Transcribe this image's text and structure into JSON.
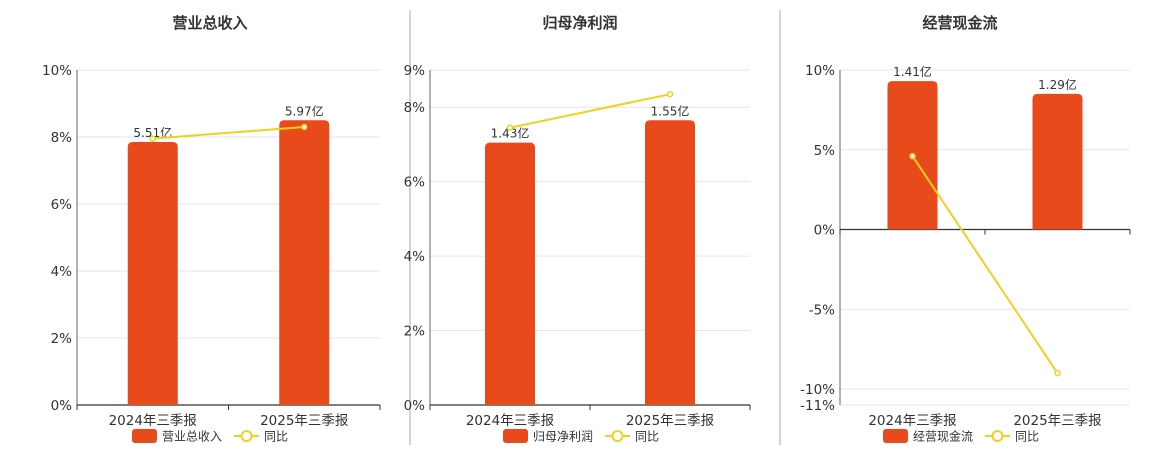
{
  "colors": {
    "bar": "#e84a1b",
    "line": "#f2d01e",
    "grid": "#e6e6e6",
    "axis": "#333333",
    "separator": "#aaaaaa"
  },
  "chart_data": [
    {
      "type": "bar",
      "title": "营业总收入",
      "categories": [
        "2024年三季报",
        "2025年三季报"
      ],
      "series": [
        {
          "name": "营业总收入",
          "kind": "bar",
          "values": [
            7.85,
            8.5
          ],
          "labels": [
            "5.51亿",
            "5.97亿"
          ]
        },
        {
          "name": "同比",
          "kind": "line",
          "values": [
            7.95,
            8.3
          ]
        }
      ],
      "ylim": [
        0,
        10
      ],
      "yticks": [
        0,
        2,
        4,
        6,
        8,
        10
      ],
      "ytick_labels": [
        "0%",
        "2%",
        "4%",
        "6%",
        "8%",
        "10%"
      ],
      "grid": true,
      "legend": "bottom-center"
    },
    {
      "type": "bar",
      "title": "归母净利润",
      "categories": [
        "2024年三季报",
        "2025年三季报"
      ],
      "series": [
        {
          "name": "归母净利润",
          "kind": "bar",
          "values": [
            7.05,
            7.65
          ],
          "labels": [
            "1.43亿",
            "1.55亿"
          ]
        },
        {
          "name": "同比",
          "kind": "line",
          "values": [
            7.45,
            8.35
          ]
        }
      ],
      "ylim": [
        0,
        9
      ],
      "yticks": [
        0,
        2,
        4,
        6,
        8,
        9
      ],
      "ytick_labels": [
        "0%",
        "2%",
        "4%",
        "6%",
        "8%",
        "9%"
      ],
      "grid": true,
      "legend": "bottom-center"
    },
    {
      "type": "bar",
      "title": "经营现金流",
      "categories": [
        "2024年三季报",
        "2025年三季报"
      ],
      "series": [
        {
          "name": "经营现金流",
          "kind": "bar",
          "values": [
            9.3,
            8.5
          ],
          "labels": [
            "1.41亿",
            "1.29亿"
          ]
        },
        {
          "name": "同比",
          "kind": "line",
          "values": [
            4.6,
            -9.0
          ]
        }
      ],
      "ylim": [
        -11,
        10
      ],
      "yticks": [
        -11,
        -10,
        -5,
        0,
        5,
        10
      ],
      "ytick_labels": [
        "-11%",
        "-10%",
        "-5%",
        "0%",
        "5%",
        "10%"
      ],
      "grid": true,
      "legend": "bottom-center"
    }
  ]
}
